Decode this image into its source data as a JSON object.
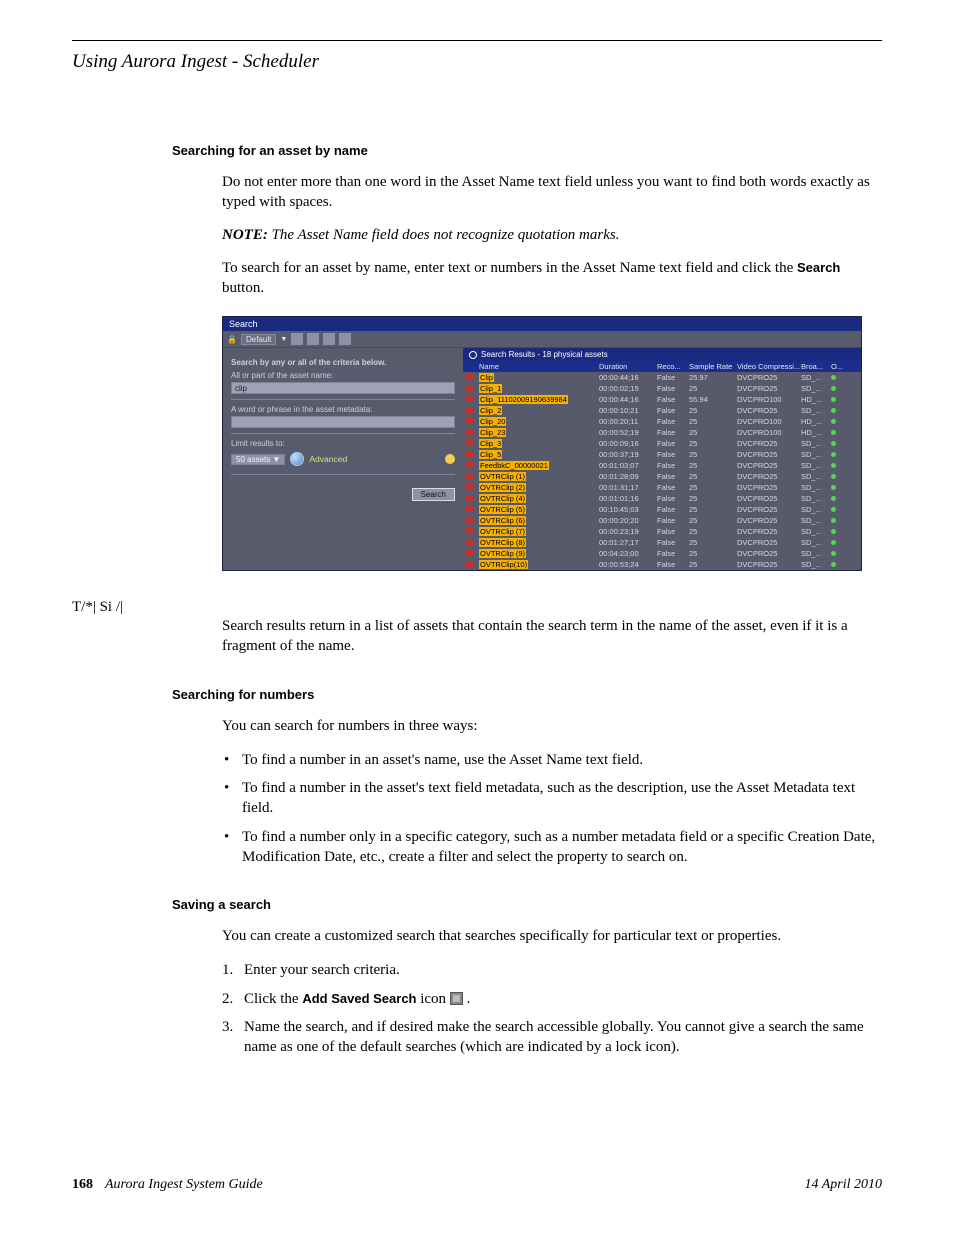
{
  "page": {
    "chapter": "Using Aurora Ingest - Scheduler",
    "number": "168",
    "guide": "Aurora Ingest System Guide",
    "date": "14 April 2010"
  },
  "s1": {
    "heading": "Searching for an asset by name",
    "p1": "Do not enter more than one word in the Asset Name text field unless you want to find both words exactly as typed with spaces.",
    "note_prefix": "NOTE:  ",
    "note": "The Asset Name field does not recognize quotation marks.",
    "p2a": "To search for an asset by name, enter text or numbers in the Asset Name text field and click the ",
    "p2b": "Search",
    "p2c": " button.",
    "after": "Search results return in a list of assets that contain the search term in the name of the asset, even if it is a fragment of the name."
  },
  "s2": {
    "heading": "Searching for numbers",
    "intro": "You can search for numbers in three ways:",
    "b1": "To find a number in an asset's name, use the Asset Name text field.",
    "b2": "To find a number in the asset's text field metadata, such as the description, use the Asset Metadata text field.",
    "b3": "To find a number only in a specific category, such as a number metadata field or a specific Creation Date, Modification Date, etc., create a filter and select the property to search on."
  },
  "s3": {
    "heading": "Saving a search",
    "intro": "You can create a customized search that searches specifically for particular text or properties.",
    "li1": "Enter your search criteria.",
    "li2a": "Click the ",
    "li2b": "Add Saved Search",
    "li2c": " icon ",
    "li2d": " .",
    "li3": "Name the search, and if desired make the search accessible globally. You cannot give a search the same name as one of the default searches (which are indicated by a lock icon)."
  },
  "shot": {
    "title": "Search",
    "toolbar_badge": "Default",
    "left": {
      "crit": "Search by any or all of the criteria below.",
      "name_lbl": "All or part of the asset name:",
      "name_val": "clip",
      "meta_lbl": "A word or phrase in the asset metadata:",
      "limit_lbl": "Limit results to:",
      "limit_val": "50 assets",
      "advanced": "Advanced",
      "search_btn": "Search"
    },
    "right": {
      "header": "Search Results - 18 physical assets",
      "cols": {
        "name": "Name",
        "dur": "Duration",
        "reco": "Reco...",
        "rate": "Sample Rate",
        "vc": "Video Compressi...",
        "broa": "Broa...",
        "o": "O..."
      }
    },
    "rows": [
      {
        "n": "Clip",
        "d": "00:00:44;16",
        "r": "False",
        "s": "25.97",
        "v": "DVCPRO25",
        "b": "SD_..."
      },
      {
        "n": "Clip_1",
        "d": "00:00:02;15",
        "r": "False",
        "s": "25",
        "v": "DVCPRO25",
        "b": "SD_..."
      },
      {
        "n": "Clip_11102009190639984",
        "d": "00:00:44;16",
        "r": "False",
        "s": "55.94",
        "v": "DVCPRO100",
        "b": "HD_..."
      },
      {
        "n": "Clip_2",
        "d": "00:00:10;21",
        "r": "False",
        "s": "25",
        "v": "DVCPRO25",
        "b": "SD_..."
      },
      {
        "n": "Clip_20",
        "d": "00:00:20;11",
        "r": "False",
        "s": "25",
        "v": "DVCPRO100",
        "b": "HD_..."
      },
      {
        "n": "Clip_23",
        "d": "00:00:52;19",
        "r": "False",
        "s": "25",
        "v": "DVCPRO100",
        "b": "HD_..."
      },
      {
        "n": "Clip_3",
        "d": "00:00:09;16",
        "r": "False",
        "s": "25",
        "v": "DVCPRO25",
        "b": "SD_..."
      },
      {
        "n": "Clip_5",
        "d": "00:00:37;19",
        "r": "False",
        "s": "25",
        "v": "DVCPRO25",
        "b": "SD_..."
      },
      {
        "n": "FeedbkC_00000021",
        "d": "00:01:03;07",
        "r": "False",
        "s": "25",
        "v": "DVCPRO25",
        "b": "SD_..."
      },
      {
        "n": "OVTRClip (1)",
        "d": "00:01:28;09",
        "r": "False",
        "s": "25",
        "v": "DVCPRO25",
        "b": "SD_..."
      },
      {
        "n": "OVTRClip (2)",
        "d": "00:01:31;17",
        "r": "False",
        "s": "25",
        "v": "DVCPRO25",
        "b": "SD_..."
      },
      {
        "n": "OVTRClip (4)",
        "d": "00:01:01;16",
        "r": "False",
        "s": "25",
        "v": "DVCPRO25",
        "b": "SD_..."
      },
      {
        "n": "OVTRClip (5)",
        "d": "00:10:45;03",
        "r": "False",
        "s": "25",
        "v": "DVCPRO25",
        "b": "SD_..."
      },
      {
        "n": "OVTRClip (6)",
        "d": "00:00:20;20",
        "r": "False",
        "s": "25",
        "v": "DVCPRO25",
        "b": "SD_..."
      },
      {
        "n": "OVTRClip (7)",
        "d": "00:00:23;19",
        "r": "False",
        "s": "25",
        "v": "DVCPRO25",
        "b": "SD_..."
      },
      {
        "n": "OVTRClip (8)",
        "d": "00:01:27;17",
        "r": "False",
        "s": "25",
        "v": "DVCPRO25",
        "b": "SD_..."
      },
      {
        "n": "OVTRClip (9)",
        "d": "00:04:23;00",
        "r": "False",
        "s": "25",
        "v": "DVCPRO25",
        "b": "SD_..."
      },
      {
        "n": "OVTRClip(10)",
        "d": "00:00:53;24",
        "r": "False",
        "s": "25",
        "v": "DVCPRO25",
        "b": "SD_..."
      }
    ]
  }
}
